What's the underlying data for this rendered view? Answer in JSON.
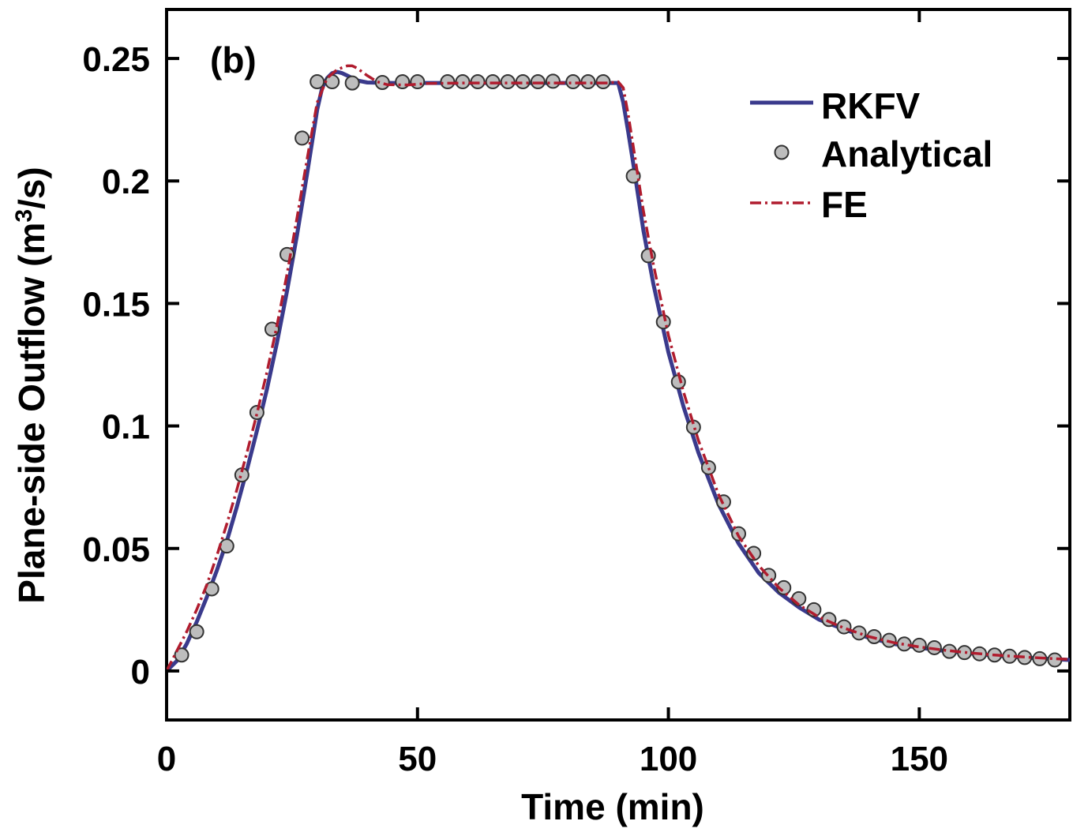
{
  "chart_data": {
    "type": "line",
    "panel_label": "(b)",
    "xlabel": "Time (min)",
    "ylabel_prefix": "Plane-side Outflow (m",
    "ylabel_sup": "3",
    "ylabel_suffix": "/s)",
    "xlim": [
      0,
      180
    ],
    "ylim": [
      -0.02,
      0.27
    ],
    "x_ticks": [
      0,
      50,
      100,
      150
    ],
    "x_tick_labels": [
      "0",
      "50",
      "100",
      "150"
    ],
    "y_ticks": [
      0,
      0.05,
      0.1,
      0.15,
      0.2,
      0.25
    ],
    "y_tick_labels": [
      "0",
      "0.05",
      "0.1",
      "0.15",
      "0.2",
      "0.25"
    ],
    "grid": false,
    "legend_position": "top-right",
    "colors": {
      "RKFV": "#3a3a8c",
      "Analytical_fill": "#bdbdbd",
      "Analytical_edge": "#333333",
      "FE": "#b01c2e"
    },
    "series": [
      {
        "name": "RKFV",
        "style": "solid",
        "x": [
          0,
          2,
          4,
          6,
          8,
          10,
          12,
          14,
          16,
          18,
          20,
          22,
          24,
          26,
          28,
          30,
          31,
          32,
          33,
          34,
          35,
          36,
          38,
          40,
          45,
          50,
          60,
          70,
          80,
          88,
          90,
          91,
          92,
          93,
          95,
          97,
          100,
          103,
          106,
          110,
          114,
          118,
          122,
          126,
          130,
          135,
          140,
          145,
          150,
          155,
          160,
          165,
          170,
          175,
          180
        ],
        "y": [
          0,
          0.004,
          0.011,
          0.02,
          0.03,
          0.041,
          0.053,
          0.067,
          0.082,
          0.098,
          0.115,
          0.134,
          0.155,
          0.178,
          0.203,
          0.229,
          0.238,
          0.242,
          0.244,
          0.2445,
          0.244,
          0.243,
          0.241,
          0.2402,
          0.24,
          0.24,
          0.24,
          0.24,
          0.24,
          0.24,
          0.24,
          0.232,
          0.22,
          0.207,
          0.18,
          0.158,
          0.13,
          0.108,
          0.089,
          0.068,
          0.052,
          0.04,
          0.032,
          0.026,
          0.021,
          0.017,
          0.0135,
          0.011,
          0.0095,
          0.0082,
          0.0072,
          0.0063,
          0.0056,
          0.005,
          0.0045
        ]
      },
      {
        "name": "Analytical",
        "style": "markers",
        "x": [
          3,
          6,
          9,
          12,
          15,
          18,
          21,
          24,
          27,
          30,
          33,
          37,
          43,
          47,
          50,
          56,
          59,
          62,
          65,
          68,
          71,
          74,
          77,
          81,
          84,
          87,
          93,
          96,
          99,
          102,
          105,
          108,
          111,
          114,
          117,
          120,
          123,
          126,
          129,
          132,
          135,
          138,
          141,
          144,
          147,
          150,
          153,
          156,
          159,
          162,
          165,
          168,
          171,
          174,
          177
        ],
        "y": [
          0.0065,
          0.016,
          0.0335,
          0.051,
          0.08,
          0.1055,
          0.1395,
          0.17,
          0.2175,
          0.2405,
          0.2405,
          0.24,
          0.2402,
          0.2405,
          0.2405,
          0.2405,
          0.2405,
          0.2405,
          0.2405,
          0.2405,
          0.2405,
          0.2405,
          0.2407,
          0.2405,
          0.2405,
          0.2405,
          0.202,
          0.1695,
          0.1425,
          0.118,
          0.0995,
          0.083,
          0.069,
          0.056,
          0.048,
          0.039,
          0.034,
          0.0295,
          0.025,
          0.021,
          0.018,
          0.0155,
          0.014,
          0.0125,
          0.011,
          0.0105,
          0.0095,
          0.008,
          0.0075,
          0.007,
          0.0065,
          0.006,
          0.0055,
          0.005,
          0.0045
        ]
      },
      {
        "name": "FE",
        "style": "dashdot",
        "x": [
          0,
          2,
          4,
          6,
          8,
          10,
          12,
          14,
          16,
          18,
          20,
          22,
          24,
          26,
          28,
          30,
          32,
          34,
          36,
          37,
          38,
          40,
          42,
          44,
          48,
          52,
          60,
          70,
          80,
          88,
          90,
          91,
          92,
          93,
          95,
          97,
          100,
          103,
          106,
          110,
          114,
          118,
          122,
          126,
          130,
          135,
          140,
          145,
          150,
          155,
          160,
          165,
          170,
          175,
          180
        ],
        "y": [
          0,
          0.008,
          0.016,
          0.025,
          0.035,
          0.047,
          0.06,
          0.074,
          0.089,
          0.105,
          0.122,
          0.141,
          0.162,
          0.185,
          0.209,
          0.232,
          0.242,
          0.2455,
          0.247,
          0.247,
          0.246,
          0.243,
          0.2405,
          0.2393,
          0.2392,
          0.2398,
          0.24,
          0.24,
          0.24,
          0.24,
          0.2405,
          0.238,
          0.227,
          0.214,
          0.188,
          0.166,
          0.137,
          0.114,
          0.094,
          0.072,
          0.055,
          0.043,
          0.034,
          0.027,
          0.022,
          0.0175,
          0.014,
          0.0115,
          0.0098,
          0.0085,
          0.0074,
          0.0065,
          0.0058,
          0.0052,
          0.0047
        ]
      }
    ]
  }
}
